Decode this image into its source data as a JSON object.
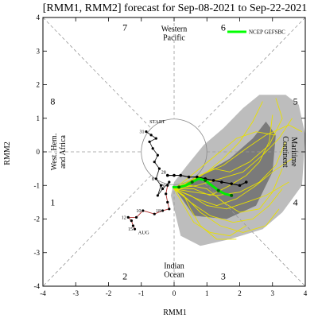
{
  "chart_data": {
    "type": "line",
    "title": "[RMM1, RMM2] forecast for Sep-08-2021 to Sep-22-2021",
    "xlabel": "RMM1",
    "ylabel": "RMM2",
    "xlim": [
      -4,
      4
    ],
    "ylim": [
      -4,
      4
    ],
    "xticks": [
      "-4",
      "-3",
      "-2",
      "-1",
      "0",
      "1",
      "2",
      "3",
      "4"
    ],
    "yticks": [
      "-4",
      "-3",
      "-2",
      "-1",
      "0",
      "1",
      "2",
      "3",
      "4"
    ],
    "phase_numbers": [
      {
        "label": "1",
        "x": -3.7,
        "y": -1.5
      },
      {
        "label": "2",
        "x": -1.5,
        "y": -3.7
      },
      {
        "label": "3",
        "x": 1.5,
        "y": -3.7
      },
      {
        "label": "4",
        "x": 3.7,
        "y": -1.5
      },
      {
        "label": "5",
        "x": 3.7,
        "y": 1.5
      },
      {
        "label": "6",
        "x": 1.5,
        "y": 3.7
      },
      {
        "label": "7",
        "x": -1.5,
        "y": 3.7
      },
      {
        "label": "8",
        "x": -3.7,
        "y": 1.5
      }
    ],
    "region_labels": [
      {
        "lines": [
          "Western",
          "Pacific"
        ],
        "x": 0,
        "y": 3.55,
        "rotate": false
      },
      {
        "lines": [
          "Indian",
          "Ocean"
        ],
        "x": 0,
        "y": -3.5,
        "rotate": false
      },
      {
        "lines": [
          "Maritime",
          "Continent"
        ],
        "x": 3.55,
        "y": 0,
        "rotate": true,
        "angle": 90
      },
      {
        "lines": [
          "West. Hem.",
          "and Africa"
        ],
        "x": -3.55,
        "y": 0,
        "rotate": true,
        "angle": -90
      }
    ],
    "legend": {
      "position": "top-right",
      "entries": [
        {
          "name": "NCEP GEFSBC",
          "color": "#00ff00"
        }
      ]
    },
    "annotations": [
      {
        "text": "START",
        "x": -0.75,
        "y": 0.85,
        "color": "#6633aa"
      },
      {
        "text": "AUG",
        "x": -1.1,
        "y": -2.45,
        "color": "#aa2222"
      }
    ],
    "shade_outer": [
      [
        -0.1,
        -1.3
      ],
      [
        0.2,
        -2.5
      ],
      [
        0.8,
        -2.8
      ],
      [
        1.7,
        -2.6
      ],
      [
        2.7,
        -2.3
      ],
      [
        3.3,
        -1.8
      ],
      [
        3.9,
        -1.0
      ],
      [
        4.0,
        0.5
      ],
      [
        3.8,
        1.4
      ],
      [
        3.4,
        1.7
      ],
      [
        2.6,
        1.7
      ],
      [
        2.1,
        1.3
      ],
      [
        1.5,
        0.7
      ],
      [
        0.9,
        0.2
      ],
      [
        0.4,
        -0.4
      ],
      [
        0.0,
        -0.9
      ]
    ],
    "shade_inner": [
      [
        0.1,
        -1.2
      ],
      [
        0.6,
        -1.9
      ],
      [
        1.6,
        -2.0
      ],
      [
        2.5,
        -1.6
      ],
      [
        3.0,
        -0.6
      ],
      [
        3.1,
        0.5
      ],
      [
        2.8,
        0.9
      ],
      [
        2.4,
        0.4
      ],
      [
        1.7,
        -0.2
      ],
      [
        1.0,
        -0.6
      ],
      [
        0.4,
        -0.9
      ]
    ],
    "observed_points": [
      {
        "label": "31",
        "x": -0.85,
        "y": 0.6
      },
      {
        "label": "",
        "x": -0.7,
        "y": 0.5
      },
      {
        "label": "",
        "x": -0.55,
        "y": 0.4
      },
      {
        "label": "",
        "x": -0.75,
        "y": 0.3
      },
      {
        "label": "",
        "x": -0.65,
        "y": 0.1
      },
      {
        "label": "",
        "x": -0.5,
        "y": -0.1
      },
      {
        "label": "",
        "x": -0.6,
        "y": -0.3
      },
      {
        "label": "",
        "x": -0.45,
        "y": -0.5
      },
      {
        "label": "8",
        "x": -0.55,
        "y": -0.8
      },
      {
        "label": "",
        "x": -0.4,
        "y": -1.0
      },
      {
        "label": "",
        "x": -0.5,
        "y": -1.3
      },
      {
        "label": "",
        "x": -0.35,
        "y": -1.1
      },
      {
        "label": "",
        "x": -0.15,
        "y": -0.9
      },
      {
        "label": "20",
        "x": -0.2,
        "y": -1.0
      },
      {
        "label": "",
        "x": -0.25,
        "y": -1.25
      },
      {
        "label": "",
        "x": -0.2,
        "y": -1.5
      },
      {
        "label": "",
        "x": -0.15,
        "y": -1.7
      },
      {
        "label": "18",
        "x": -0.35,
        "y": -1.75
      },
      {
        "label": "",
        "x": -0.6,
        "y": -1.85
      },
      {
        "label": "10",
        "x": -0.95,
        "y": -1.75
      },
      {
        "label": "",
        "x": -1.15,
        "y": -1.95
      },
      {
        "label": "12",
        "x": -1.4,
        "y": -1.95
      },
      {
        "label": "",
        "x": -1.3,
        "y": -2.05
      },
      {
        "label": "",
        "x": -1.25,
        "y": -2.2
      },
      {
        "label": "15",
        "x": -1.2,
        "y": -2.3
      }
    ],
    "black_forecast": [
      {
        "label": "28",
        "x": -0.2,
        "y": -0.7
      },
      {
        "label": "",
        "x": 0.0,
        "y": -0.7
      },
      {
        "label": "",
        "x": 0.2,
        "y": -0.7
      },
      {
        "label": "",
        "x": 0.45,
        "y": -0.75
      },
      {
        "label": "",
        "x": 0.7,
        "y": -0.75
      },
      {
        "label": "",
        "x": 0.95,
        "y": -0.8
      },
      {
        "label": "",
        "x": 1.2,
        "y": -0.85
      },
      {
        "label": "",
        "x": 1.45,
        "y": -0.9
      },
      {
        "label": "",
        "x": 1.75,
        "y": -0.95
      },
      {
        "label": "",
        "x": 2.0,
        "y": -1.0
      },
      {
        "label": "",
        "x": 2.2,
        "y": -0.9
      }
    ],
    "green_forecast": [
      [
        -0.05,
        -1.05
      ],
      [
        0.15,
        -1.05
      ],
      [
        0.35,
        -1.0
      ],
      [
        0.55,
        -0.9
      ],
      [
        0.75,
        -0.8
      ],
      [
        0.95,
        -0.85
      ],
      [
        1.15,
        -1.0
      ],
      [
        1.35,
        -1.15
      ],
      [
        1.55,
        -1.25
      ],
      [
        1.75,
        -1.3
      ]
    ],
    "green_points": [
      [
        0.15,
        -1.05
      ],
      [
        0.55,
        -0.9
      ],
      [
        0.95,
        -0.85
      ],
      [
        1.35,
        -1.15
      ],
      [
        1.75,
        -1.3
      ]
    ],
    "ensemble_members": [
      [
        [
          0,
          -1.1
        ],
        [
          0.5,
          -0.9
        ],
        [
          1.0,
          -0.6
        ],
        [
          1.5,
          -0.2
        ],
        [
          2.0,
          0.3
        ],
        [
          2.4,
          0.9
        ],
        [
          2.7,
          1.5
        ]
      ],
      [
        [
          0,
          -1.1
        ],
        [
          0.6,
          -1.2
        ],
        [
          1.3,
          -1.3
        ],
        [
          2.0,
          -1.2
        ],
        [
          2.6,
          -0.9
        ],
        [
          3.1,
          -0.4
        ],
        [
          3.4,
          0.3
        ]
      ],
      [
        [
          0,
          -1.1
        ],
        [
          0.5,
          -1.5
        ],
        [
          1.1,
          -1.9
        ],
        [
          1.8,
          -2.1
        ],
        [
          2.4,
          -2.0
        ],
        [
          2.9,
          -1.6
        ],
        [
          3.3,
          -1.1
        ]
      ],
      [
        [
          0,
          -1.1
        ],
        [
          0.4,
          -0.8
        ],
        [
          0.9,
          -0.4
        ],
        [
          1.4,
          0.0
        ],
        [
          1.9,
          0.4
        ],
        [
          2.5,
          0.6
        ],
        [
          3.1,
          0.5
        ]
      ],
      [
        [
          0,
          -1.1
        ],
        [
          0.3,
          -1.6
        ],
        [
          0.6,
          -2.1
        ],
        [
          1.1,
          -2.4
        ],
        [
          1.7,
          -2.5
        ],
        [
          2.2,
          -2.2
        ]
      ],
      [
        [
          0,
          -1.1
        ],
        [
          0.7,
          -1.0
        ],
        [
          1.4,
          -0.8
        ],
        [
          2.1,
          -0.6
        ],
        [
          2.7,
          -0.1
        ],
        [
          3.2,
          0.4
        ],
        [
          3.6,
          1.0
        ]
      ],
      [
        [
          0,
          -1.1
        ],
        [
          0.5,
          -1.3
        ],
        [
          1.0,
          -1.6
        ],
        [
          1.6,
          -1.7
        ],
        [
          2.2,
          -1.5
        ],
        [
          2.8,
          -1.3
        ],
        [
          3.5,
          -0.9
        ]
      ],
      [
        [
          0,
          -1.1
        ],
        [
          0.6,
          -0.8
        ],
        [
          1.2,
          -0.5
        ],
        [
          1.7,
          -0.6
        ],
        [
          2.3,
          -0.3
        ],
        [
          2.9,
          0.2
        ],
        [
          3.3,
          1.0
        ],
        [
          3.1,
          1.6
        ]
      ],
      [
        [
          0,
          -1.1
        ],
        [
          0.4,
          -1.4
        ],
        [
          0.8,
          -1.8
        ],
        [
          1.4,
          -2.2
        ],
        [
          2.1,
          -2.4
        ],
        [
          2.8,
          -2.2
        ],
        [
          3.2,
          -1.7
        ]
      ],
      [
        [
          0,
          -1.1
        ],
        [
          0.6,
          -1.1
        ],
        [
          1.1,
          -1.3
        ],
        [
          1.7,
          -1.0
        ],
        [
          2.2,
          -0.7
        ],
        [
          2.6,
          -0.3
        ],
        [
          2.9,
          0.3
        ],
        [
          3.0,
          1.1
        ]
      ],
      [
        [
          0,
          -1.1
        ],
        [
          0.3,
          -1.3
        ],
        [
          0.5,
          -1.7
        ],
        [
          0.8,
          -2.2
        ],
        [
          1.3,
          -2.6
        ],
        [
          1.9,
          -2.6
        ]
      ],
      [
        [
          0,
          -1.1
        ],
        [
          0.8,
          -0.7
        ],
        [
          1.5,
          -0.4
        ],
        [
          2.2,
          0.1
        ],
        [
          2.8,
          0.5
        ],
        [
          3.5,
          0.8
        ],
        [
          3.9,
          0.6
        ]
      ],
      [
        [
          0,
          -1.1
        ],
        [
          0.5,
          -1.0
        ],
        [
          1.0,
          -1.1
        ],
        [
          1.5,
          -1.5
        ],
        [
          2.0,
          -1.8
        ],
        [
          2.6,
          -1.7
        ],
        [
          3.0,
          -1.2
        ],
        [
          3.3,
          -0.5
        ]
      ],
      [
        [
          0,
          -1.1
        ],
        [
          0.7,
          -1.4
        ],
        [
          1.3,
          -1.6
        ],
        [
          1.9,
          -1.4
        ],
        [
          2.5,
          -1.0
        ],
        [
          3.0,
          -0.6
        ],
        [
          3.6,
          -0.2
        ]
      ]
    ]
  }
}
